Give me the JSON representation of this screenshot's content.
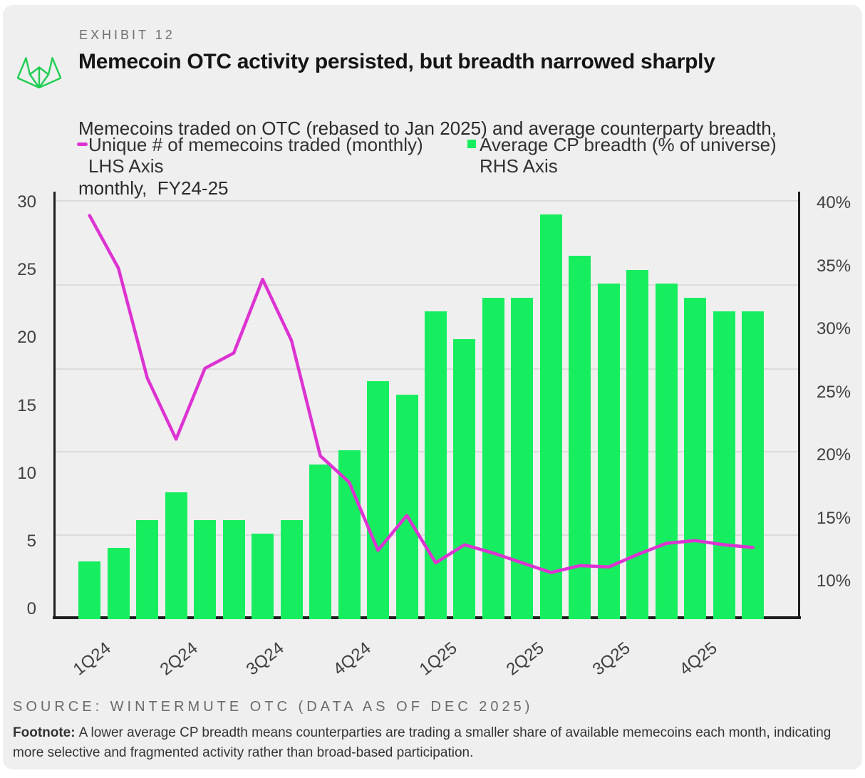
{
  "exhibit_label": "EXHIBIT 12",
  "header": {
    "title": "Memecoin OTC activity persisted, but breadth narrowed sharply",
    "subtitle_line1": "Memecoins traded on OTC (rebased to Jan 2025) and average counterparty breadth,",
    "subtitle_line2": "monthly,  FY24-25"
  },
  "legend": {
    "items": [
      {
        "label": "Unique # of memecoins traded (monthly)",
        "sublabel": "LHS Axis",
        "marker": "dash",
        "color": "#DC33D2"
      },
      {
        "label": "Average CP breadth (% of universe)",
        "sublabel": "RHS Axis",
        "marker": "square",
        "color": "#17EE5F"
      }
    ]
  },
  "chart_data": {
    "type": "combo",
    "title": "Memecoin OTC activity persisted, but breadth narrowed sharply",
    "x_axis": {
      "labels": [
        "1Q24",
        "2Q24",
        "3Q24",
        "4Q24",
        "1Q25",
        "2Q25",
        "3Q25",
        "4Q25"
      ],
      "months_per_label": 3
    },
    "left_axis": {
      "name": "Unique # of memecoins traded (monthly), LHS",
      "ticks": [
        "30",
        "25",
        "20",
        "15",
        "10",
        "5",
        "0"
      ],
      "min": 0,
      "max": 30
    },
    "right_axis": {
      "name": "Average CP breadth (% of universe), RHS",
      "ticks": [
        "40%",
        "35%",
        "30%",
        "25%",
        "20%",
        "15%",
        "10%"
      ],
      "min": 10,
      "max": 40,
      "unit": "%"
    },
    "grid": "horizontal",
    "legend_position": "top",
    "series": [
      {
        "name": "Unique # of memecoins traded (monthly)",
        "type": "line",
        "axis": "left",
        "color": "#DC33D2",
        "values": [
          28.9,
          25.1,
          17.2,
          12.8,
          17.9,
          19.0,
          24.3,
          19.9,
          11.6,
          9.7,
          4.8,
          7.3,
          3.9,
          5.2,
          4.6,
          3.9,
          3.2,
          3.7,
          3.6,
          4.5,
          5.3,
          5.5,
          5.2,
          5.0
        ]
      },
      {
        "name": "Average CP breadth (% of universe)",
        "type": "bar",
        "axis": "right",
        "color": "#17EE5F",
        "values": [
          14,
          15,
          17,
          19,
          17,
          17,
          16,
          17,
          21,
          22,
          27,
          26,
          32,
          30,
          33,
          33,
          39,
          36,
          34,
          35,
          34,
          33,
          32,
          32
        ]
      }
    ]
  },
  "source": "SOURCE: WINTERMUTE OTC (DATA AS OF DEC 2025)",
  "footnote": {
    "label": "Footnote:",
    "text": "A lower average CP breadth means counterparties are trading a smaller share of available memecoins each month, indicating more selective and fragmented activity rather than broad-based participation."
  },
  "colors": {
    "card_background": "#EFEFEF",
    "page_background": "#FFFFFF",
    "bar_green": "#17EE5F",
    "line_magenta": "#DC33D2",
    "logo_green": "#1FCE52",
    "axis_dark": "#1E1E1E",
    "gridline": "#DBDBDB"
  }
}
